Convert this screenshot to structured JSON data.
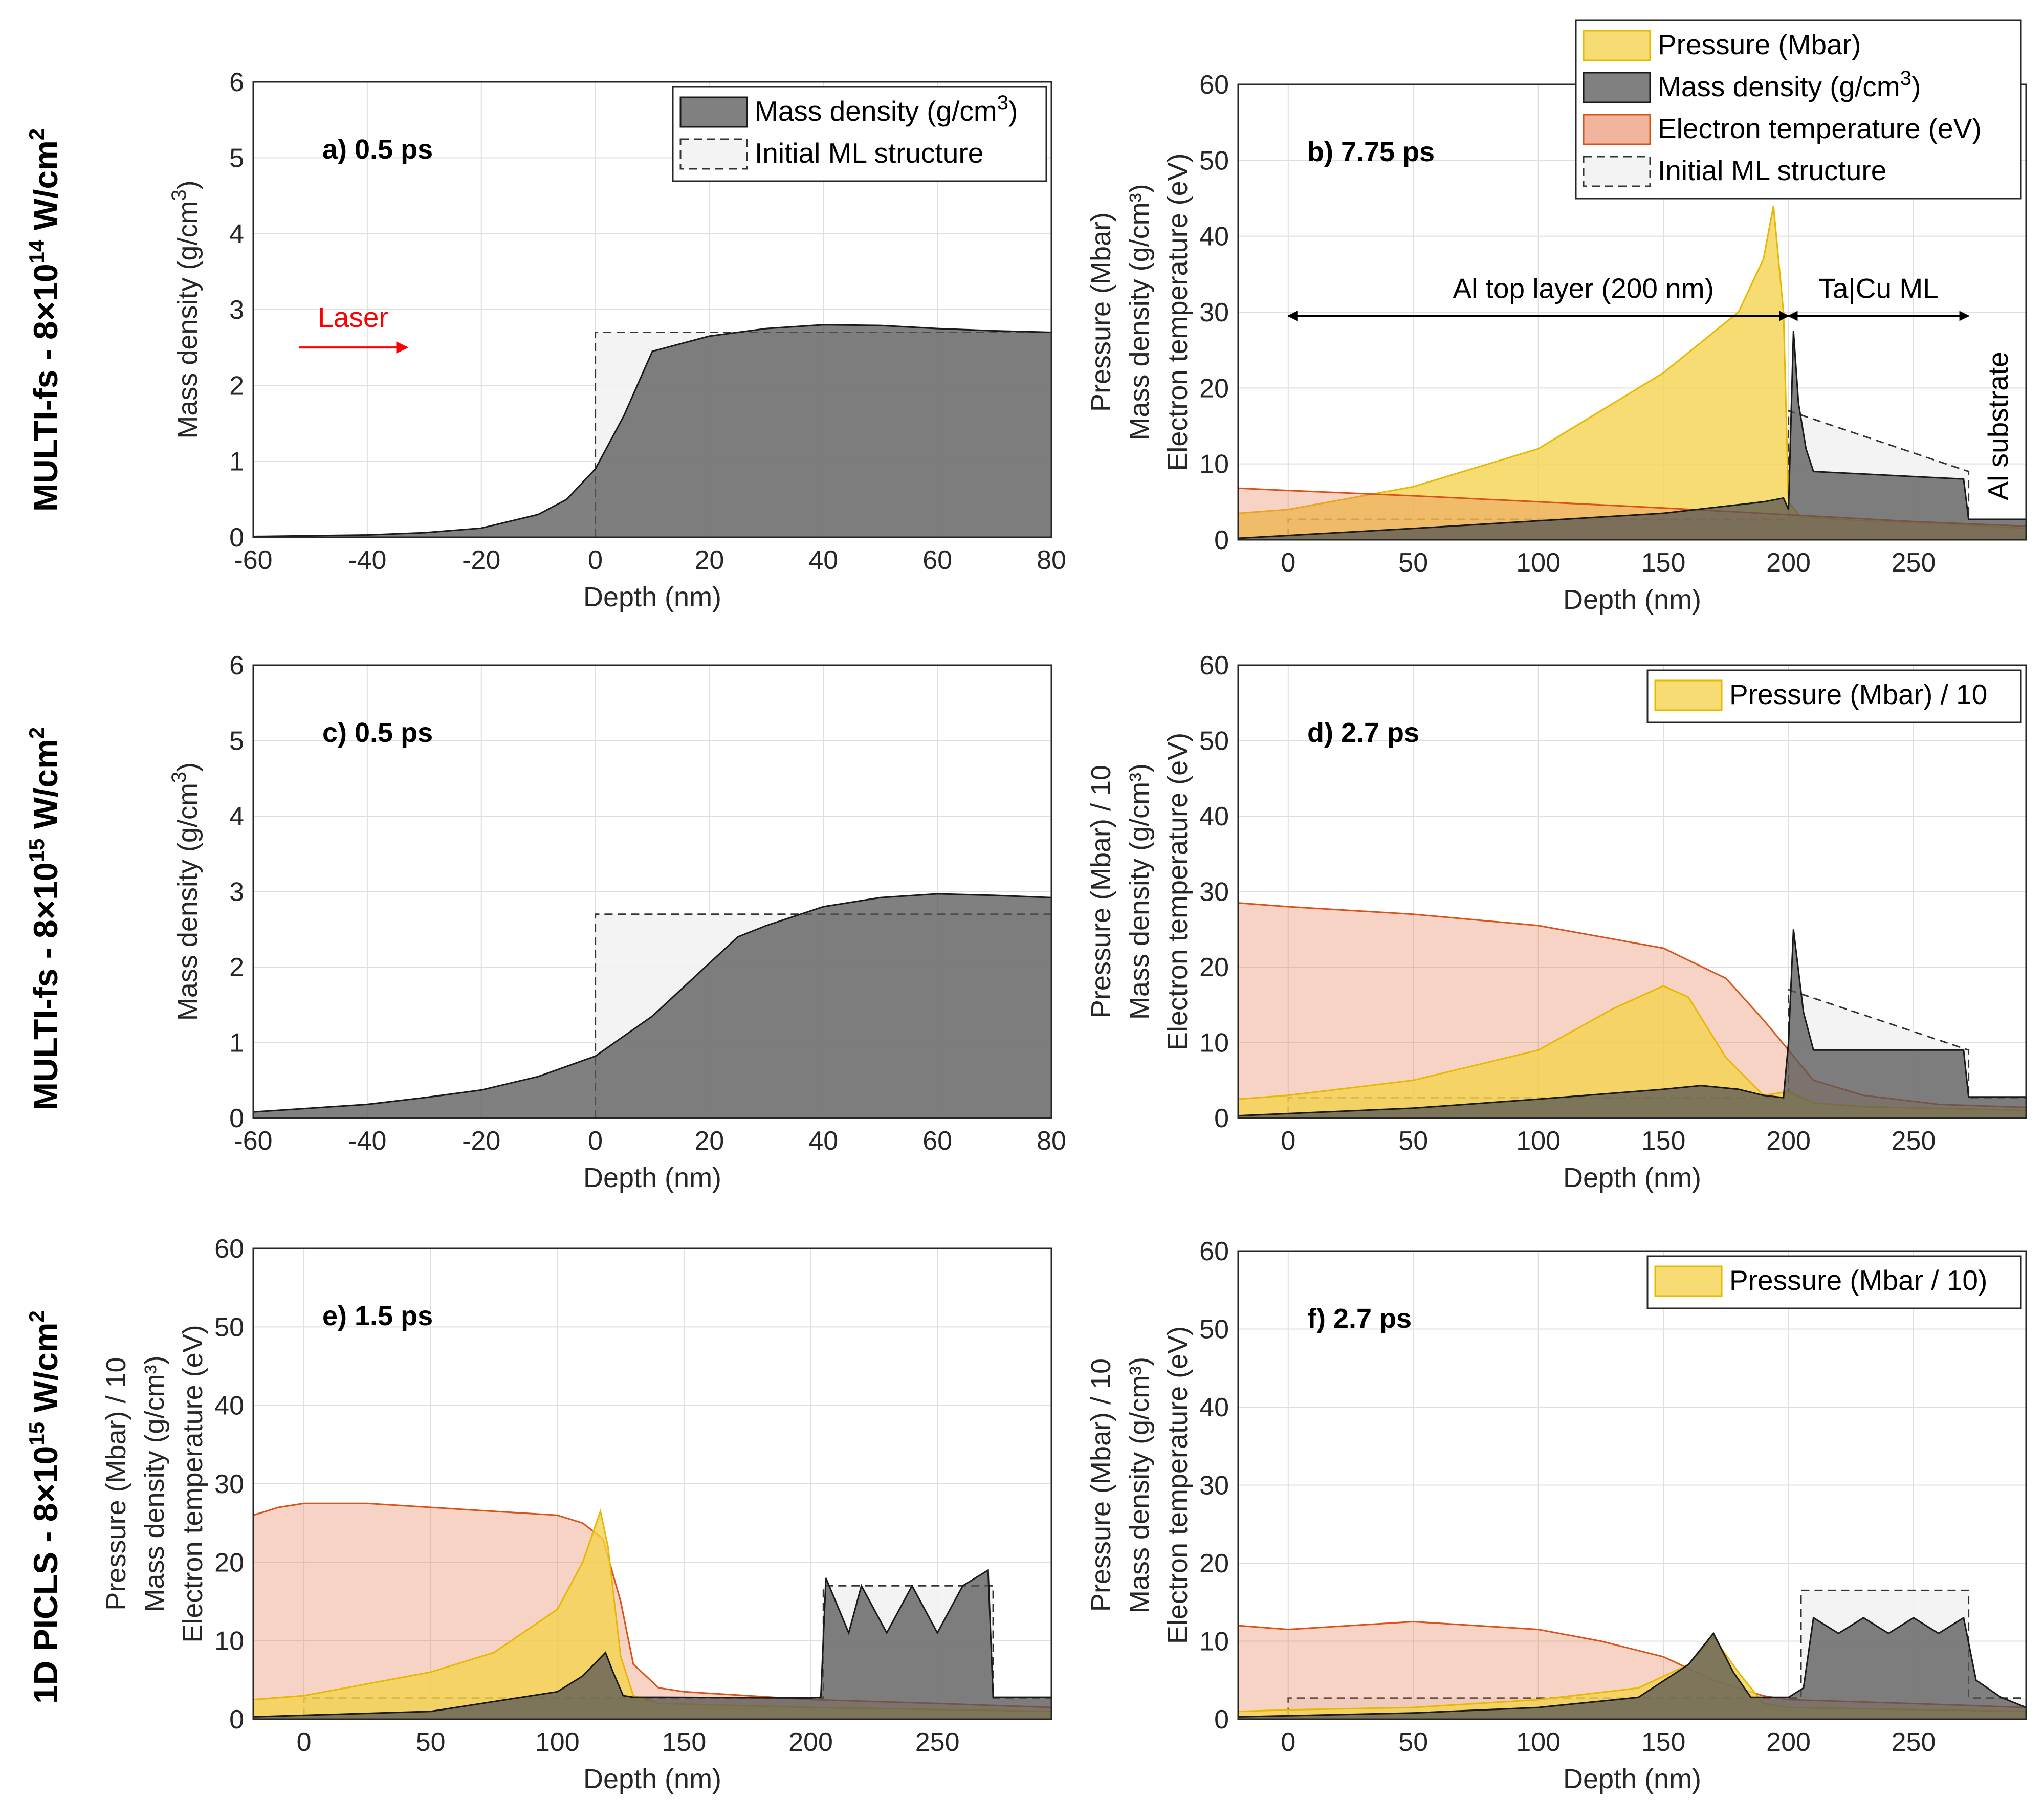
{
  "row_labels": [
    {
      "main": "MULTI-fs - 8×10",
      "exp": "14",
      "unit": " W/cm",
      "sq": "2"
    },
    {
      "main": "MULTI-fs - 8×10",
      "exp": "15",
      "unit": " W/cm",
      "sq": "2"
    },
    {
      "main": "1D PICLS - 8×10",
      "exp": "15",
      "unit": " W/cm",
      "sq": "2"
    }
  ],
  "colors": {
    "pressure": "#f4d34f",
    "density": "#555555",
    "temperature": "#e8825a",
    "initial": "#f2f2f2",
    "laser": "#ff0000"
  },
  "chart_data": [
    {
      "id": "a",
      "type": "area",
      "panel_label": "a)  0.5 ps",
      "xlabel": "Depth (nm)",
      "ylabel": [
        "Mass density (g/cm",
        "3",
        ")"
      ],
      "xlim": [
        -60,
        80
      ],
      "ylim": [
        0,
        6
      ],
      "xticks": [
        "-60",
        "-40",
        "-20",
        "0",
        "20",
        "40",
        "60",
        "80"
      ],
      "yticks": [
        "0",
        "1",
        "2",
        "3",
        "4",
        "5",
        "6"
      ],
      "legend": [
        {
          "label": "Mass density (g/cm",
          "sup": "3",
          "tail": ")",
          "key": "density"
        },
        {
          "label": "Initial ML structure",
          "key": "initial"
        }
      ],
      "annotation": {
        "label": "Laser",
        "x_from": -52,
        "x_to": -33,
        "y": 2.5
      },
      "series": [
        {
          "name": "Mass density",
          "key": "density",
          "x": [
            -60,
            -40,
            -30,
            -20,
            -10,
            -5,
            0,
            5,
            10,
            20,
            30,
            40,
            50,
            60,
            70,
            80
          ],
          "y": [
            0.01,
            0.03,
            0.06,
            0.12,
            0.3,
            0.5,
            0.9,
            1.6,
            2.45,
            2.65,
            2.75,
            2.8,
            2.79,
            2.75,
            2.72,
            2.7
          ]
        },
        {
          "name": "Initial ML structure",
          "key": "initial",
          "x": [
            0,
            0,
            80,
            80
          ],
          "y": [
            0,
            2.7,
            2.7,
            0
          ]
        }
      ]
    },
    {
      "id": "b",
      "type": "area",
      "panel_label": "b)  7.75 ps",
      "xlabel": "Depth (nm)",
      "ylabel": [
        "Pressure (Mbar)",
        "Mass density (g/cm³)",
        "Electron temperature (eV)"
      ],
      "xlim": [
        -20,
        295
      ],
      "ylim": [
        0,
        60
      ],
      "xticks": [
        "0",
        "50",
        "100",
        "150",
        "200",
        "250"
      ],
      "yticks": [
        "0",
        "10",
        "20",
        "30",
        "40",
        "50",
        "60"
      ],
      "legend": [
        {
          "label": "Pressure (Mbar)",
          "key": "pressure"
        },
        {
          "label": "Mass density (g/cm",
          "sup": "3",
          "tail": ")",
          "key": "density"
        },
        {
          "label": "Electron temperature (eV)",
          "key": "temperature"
        },
        {
          "label": "Initial ML structure",
          "key": "initial"
        }
      ],
      "annotations": {
        "al_top": "Al top layer (200 nm)",
        "tacu": "Ta|Cu ML",
        "substrate": "Al substrate"
      },
      "series": [
        {
          "name": "Pressure",
          "key": "pressure",
          "x": [
            -20,
            0,
            50,
            100,
            150,
            180,
            190,
            194,
            198,
            200,
            205,
            230,
            270,
            295
          ],
          "y": [
            3.5,
            4,
            7,
            12,
            22,
            30,
            37,
            44,
            30,
            5,
            3,
            2.5,
            2,
            1.5
          ]
        },
        {
          "name": "Electron temperature",
          "key": "temperature",
          "x": [
            -20,
            0,
            50,
            100,
            150,
            200,
            250,
            295
          ],
          "y": [
            6.8,
            6.5,
            5.8,
            5,
            4.2,
            3.3,
            2.4,
            1.8
          ]
        },
        {
          "name": "Mass density",
          "key": "density",
          "x": [
            -20,
            50,
            100,
            150,
            190,
            198,
            200,
            202,
            204,
            207,
            210,
            270,
            272,
            295
          ],
          "y": [
            0.2,
            1.5,
            2.5,
            3.5,
            5,
            5.5,
            4,
            27.5,
            18,
            12,
            9,
            8,
            2.7,
            2.7
          ]
        },
        {
          "name": "Initial ML structure",
          "key": "initial",
          "x": [
            -20,
            0,
            0,
            200,
            200,
            272,
            272,
            295
          ],
          "y": [
            0,
            0,
            2.7,
            2.7,
            17,
            9,
            2.7,
            2.7
          ]
        }
      ]
    },
    {
      "id": "c",
      "type": "area",
      "panel_label": "c)  0.5 ps",
      "xlabel": "Depth (nm)",
      "ylabel": [
        "Mass density (g/cm",
        "3",
        ")"
      ],
      "xlim": [
        -60,
        80
      ],
      "ylim": [
        0,
        6
      ],
      "xticks": [
        "-60",
        "-40",
        "-20",
        "0",
        "20",
        "40",
        "60",
        "80"
      ],
      "yticks": [
        "0",
        "1",
        "2",
        "3",
        "4",
        "5",
        "6"
      ],
      "series": [
        {
          "name": "Mass density",
          "key": "density",
          "x": [
            -60,
            -40,
            -30,
            -20,
            -10,
            0,
            10,
            20,
            25,
            30,
            40,
            50,
            60,
            70,
            80
          ],
          "y": [
            0.08,
            0.18,
            0.27,
            0.37,
            0.55,
            0.82,
            1.35,
            2.05,
            2.4,
            2.55,
            2.8,
            2.92,
            2.97,
            2.95,
            2.92
          ]
        },
        {
          "name": "Initial ML structure",
          "key": "initial",
          "x": [
            0,
            0,
            80,
            80
          ],
          "y": [
            0,
            2.7,
            2.7,
            0
          ]
        }
      ]
    },
    {
      "id": "d",
      "type": "area",
      "panel_label": "d)  2.7 ps",
      "xlabel": "Depth (nm)",
      "ylabel": [
        "Pressure (Mbar) / 10",
        "Mass density (g/cm³)",
        "Electron temperature (eV)"
      ],
      "xlim": [
        -20,
        295
      ],
      "ylim": [
        0,
        60
      ],
      "xticks": [
        "0",
        "50",
        "100",
        "150",
        "200",
        "250"
      ],
      "yticks": [
        "0",
        "10",
        "20",
        "30",
        "40",
        "50",
        "60"
      ],
      "legend": [
        {
          "label": "Pressure (Mbar) / 10",
          "key": "pressure"
        }
      ],
      "series": [
        {
          "name": "Electron temperature",
          "key": "temperature",
          "x": [
            -20,
            0,
            50,
            100,
            150,
            175,
            190,
            200,
            210,
            230,
            260,
            295
          ],
          "y": [
            28.5,
            28,
            27,
            25.5,
            22.5,
            18.5,
            13,
            9,
            5,
            3,
            1.8,
            1.4
          ]
        },
        {
          "name": "Pressure",
          "key": "pressure",
          "x": [
            -20,
            0,
            50,
            100,
            130,
            150,
            160,
            175,
            190,
            200,
            210,
            230,
            295
          ],
          "y": [
            2.5,
            3,
            5,
            9,
            14.5,
            17.5,
            16,
            8,
            3,
            3.5,
            2,
            1.5,
            1
          ]
        },
        {
          "name": "Mass density",
          "key": "density",
          "x": [
            -20,
            50,
            100,
            150,
            165,
            180,
            190,
            198,
            200,
            202,
            206,
            210,
            270,
            272,
            295
          ],
          "y": [
            0.3,
            1.3,
            2.5,
            3.8,
            4.3,
            3.8,
            3,
            2.7,
            10,
            25,
            14,
            9,
            9,
            2.8,
            2.8
          ]
        },
        {
          "name": "Initial ML structure",
          "key": "initial",
          "x": [
            -20,
            0,
            0,
            200,
            200,
            272,
            272,
            295
          ],
          "y": [
            0,
            0,
            2.7,
            2.7,
            17,
            9,
            2.7,
            2.7
          ]
        }
      ]
    },
    {
      "id": "e",
      "type": "area",
      "panel_label": "e)  1.5 ps",
      "xlabel": "Depth (nm)",
      "ylabel": [
        "Pressure (Mbar) / 10",
        "Mass density (g/cm³)",
        "Electron temperature (eV)"
      ],
      "xlim": [
        -20,
        295
      ],
      "ylim": [
        0,
        60
      ],
      "xticks": [
        "0",
        "50",
        "100",
        "150",
        "200",
        "250"
      ],
      "yticks": [
        "0",
        "10",
        "20",
        "30",
        "40",
        "50",
        "60"
      ],
      "series": [
        {
          "name": "Electron temperature",
          "key": "temperature",
          "x": [
            -20,
            -10,
            0,
            25,
            50,
            75,
            100,
            110,
            118,
            125,
            130,
            140,
            150,
            175,
            200,
            250,
            295
          ],
          "y": [
            26,
            27,
            27.5,
            27.5,
            27,
            26.5,
            26,
            25,
            23,
            15,
            7,
            4,
            3.5,
            3,
            2.5,
            2,
            1.5
          ]
        },
        {
          "name": "Pressure",
          "key": "pressure",
          "x": [
            -20,
            0,
            25,
            50,
            75,
            100,
            110,
            117,
            120,
            125,
            130,
            140,
            200,
            295
          ],
          "y": [
            2.5,
            3,
            4.5,
            6,
            8.5,
            14,
            20,
            26.5,
            22,
            8,
            3,
            2,
            1.5,
            1
          ]
        },
        {
          "name": "Mass density",
          "key": "density",
          "x": [
            -20,
            50,
            100,
            110,
            119,
            122,
            126,
            130,
            140,
            200,
            204,
            206,
            215,
            220,
            230,
            240,
            250,
            260,
            270,
            272,
            295
          ],
          "y": [
            0.3,
            1,
            3.5,
            5.5,
            8.5,
            6,
            3,
            2.8,
            2.8,
            2.7,
            2.8,
            18,
            11,
            17,
            11,
            17,
            11,
            17,
            19,
            2.8,
            2.8
          ]
        },
        {
          "name": "Initial ML structure",
          "key": "initial",
          "x": [
            -20,
            0,
            0,
            200,
            205,
            205,
            272,
            272,
            295
          ],
          "y": [
            0,
            0,
            2.7,
            2.7,
            2.7,
            17,
            17,
            2.7,
            2.7
          ]
        }
      ]
    },
    {
      "id": "f",
      "type": "area",
      "panel_label": "f)  2.7 ps",
      "xlabel": "Depth (nm)",
      "ylabel": [
        "Pressure (Mbar) / 10",
        "Mass density (g/cm³)",
        "Electron temperature (eV)"
      ],
      "xlim": [
        -20,
        295
      ],
      "ylim": [
        0,
        60
      ],
      "xticks": [
        "0",
        "50",
        "100",
        "150",
        "200",
        "250"
      ],
      "yticks": [
        "0",
        "10",
        "20",
        "30",
        "40",
        "50",
        "60"
      ],
      "legend": [
        {
          "label": "Pressure (Mbar / 10)",
          "key": "pressure"
        }
      ],
      "series": [
        {
          "name": "Electron temperature",
          "key": "temperature",
          "x": [
            -20,
            0,
            50,
            100,
            125,
            150,
            170,
            190,
            200,
            250,
            295
          ],
          "y": [
            12,
            11.5,
            12.5,
            11.5,
            10,
            8,
            5,
            3,
            2.5,
            2,
            1.5
          ]
        },
        {
          "name": "Pressure",
          "key": "pressure",
          "x": [
            -20,
            0,
            50,
            100,
            140,
            160,
            170,
            180,
            190,
            200,
            295
          ],
          "y": [
            1,
            1.2,
            1.5,
            2.5,
            4,
            7,
            10.5,
            6,
            2,
            1.5,
            1
          ]
        },
        {
          "name": "Mass density",
          "key": "density",
          "x": [
            -20,
            50,
            100,
            140,
            160,
            170,
            178,
            185,
            200,
            206,
            210,
            220,
            230,
            240,
            250,
            260,
            270,
            275,
            285,
            295
          ],
          "y": [
            0.3,
            0.8,
            1.5,
            2.8,
            7,
            11,
            6,
            2.8,
            2.8,
            4,
            13,
            11,
            13,
            11,
            13,
            11,
            13,
            5,
            2.8,
            1.5
          ]
        },
        {
          "name": "Initial ML structure",
          "key": "initial",
          "x": [
            -20,
            0,
            0,
            200,
            205,
            205,
            272,
            272,
            295
          ],
          "y": [
            0,
            0,
            2.7,
            2.7,
            2.7,
            16.5,
            16.5,
            2.7,
            2.7
          ]
        }
      ]
    }
  ]
}
